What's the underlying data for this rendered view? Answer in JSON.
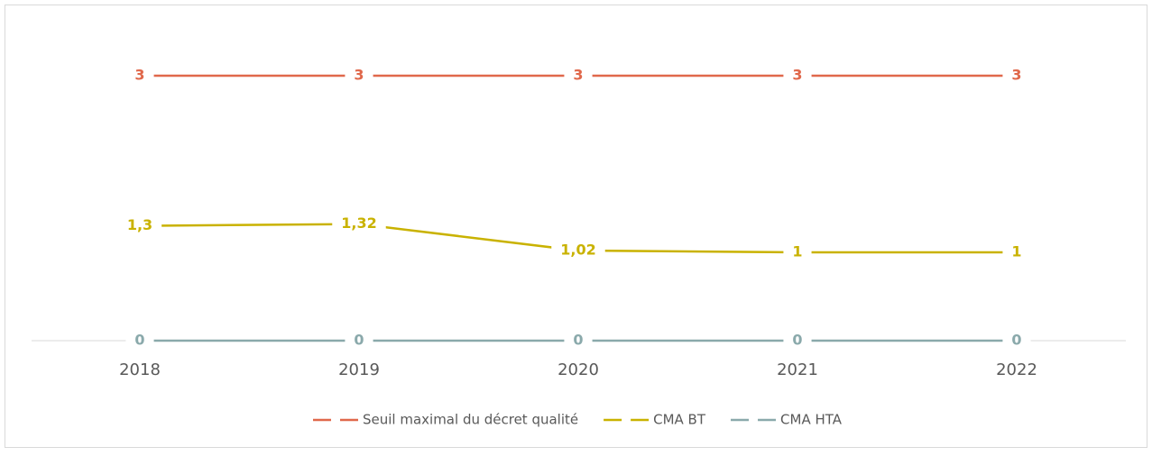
{
  "chart_data": {
    "type": "line",
    "categories": [
      "2018",
      "2019",
      "2020",
      "2021",
      "2022"
    ],
    "series": [
      {
        "name": "Seuil maximal du décret qualité",
        "color": "#e0684b",
        "values": [
          3,
          3,
          3,
          3,
          3
        ]
      },
      {
        "name": "CMA BT",
        "color": "#c9b200",
        "values": [
          1.3,
          1.32,
          1.02,
          1,
          1
        ],
        "value_labels": [
          "1,3",
          "1,32",
          "1,02",
          "1",
          "1"
        ]
      },
      {
        "name": "CMA HTA",
        "color": "#8aa9ab",
        "values": [
          0,
          0,
          0,
          0,
          0
        ]
      }
    ],
    "legend": "bottom"
  }
}
